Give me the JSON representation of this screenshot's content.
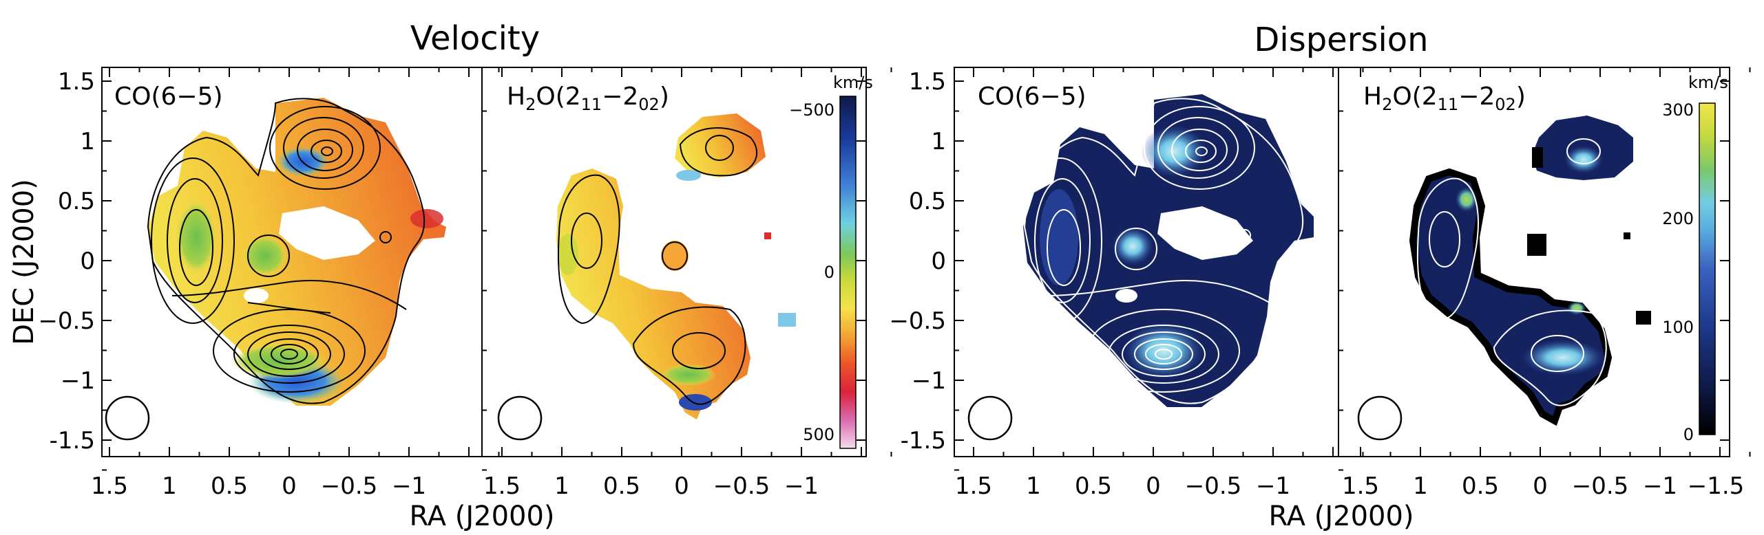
{
  "titles": {
    "left": "Velocity",
    "right": "Dispersion"
  },
  "axes": {
    "xlabel": "RA (J2000)",
    "ylabel": "DEC (J2000)",
    "xticks_left": [
      "1.5",
      "1",
      "0.5",
      "0",
      "−0.5",
      "−1"
    ],
    "xticks_right": [
      "1.5",
      "1",
      "0.5",
      "0",
      "−0.5",
      "−1",
      "−1.5"
    ],
    "yticks": [
      "1.5",
      "1",
      "0.5",
      "0",
      "−0.5",
      "−1",
      "-1.5"
    ]
  },
  "panels": [
    {
      "label": "CO(6−5)"
    },
    {
      "label_main": "H",
      "label_sub1": "2",
      "label_mid": "O(2",
      "label_sub2": "11",
      "label_dash": "−2",
      "label_sub3": "02",
      "label_end": ")"
    },
    {
      "label": "CO(6−5)"
    },
    {
      "label_main": "H",
      "label_sub1": "2",
      "label_mid": "O(2",
      "label_sub2": "11",
      "label_dash": "−2",
      "label_sub3": "02",
      "label_end": ")"
    }
  ],
  "colorbars": {
    "velocity": {
      "unit": "km/s",
      "ticks": [
        "−500",
        "0",
        "500"
      ]
    },
    "dispersion": {
      "unit": "km/s",
      "ticks": [
        "300",
        "200",
        "100",
        "0"
      ]
    }
  },
  "colors": {
    "frame": "#000000",
    "background": "#ffffff",
    "dispersion_base": "#14235f"
  },
  "chart_data": [
    {
      "type": "heatmap",
      "title": "Velocity",
      "quantity": "velocity",
      "unit": "km/s",
      "colorbar_range": [
        -500,
        500
      ],
      "xlabel": "RA (J2000)",
      "ylabel": "DEC (J2000)",
      "x_range": [
        1.5,
        -1.5
      ],
      "y_range": [
        -1.5,
        1.5
      ],
      "panels": [
        {
          "label": "CO(6−5)",
          "contours": "black",
          "beam": "circle bottom-left"
        },
        {
          "label": "H2O(211−202)",
          "contours": "black",
          "beam": "circle bottom-left"
        }
      ]
    },
    {
      "type": "heatmap",
      "title": "Dispersion",
      "quantity": "dispersion",
      "unit": "km/s",
      "colorbar_range": [
        0,
        300
      ],
      "xlabel": "RA (J2000)",
      "ylabel": "DEC (J2000)",
      "x_range": [
        1.5,
        -1.5
      ],
      "y_range": [
        -1.5,
        1.5
      ],
      "panels": [
        {
          "label": "CO(6−5)",
          "contours": "white",
          "beam": "circle bottom-left"
        },
        {
          "label": "H2O(211−202)",
          "contours": "white",
          "beam": "circle bottom-left"
        }
      ]
    }
  ]
}
